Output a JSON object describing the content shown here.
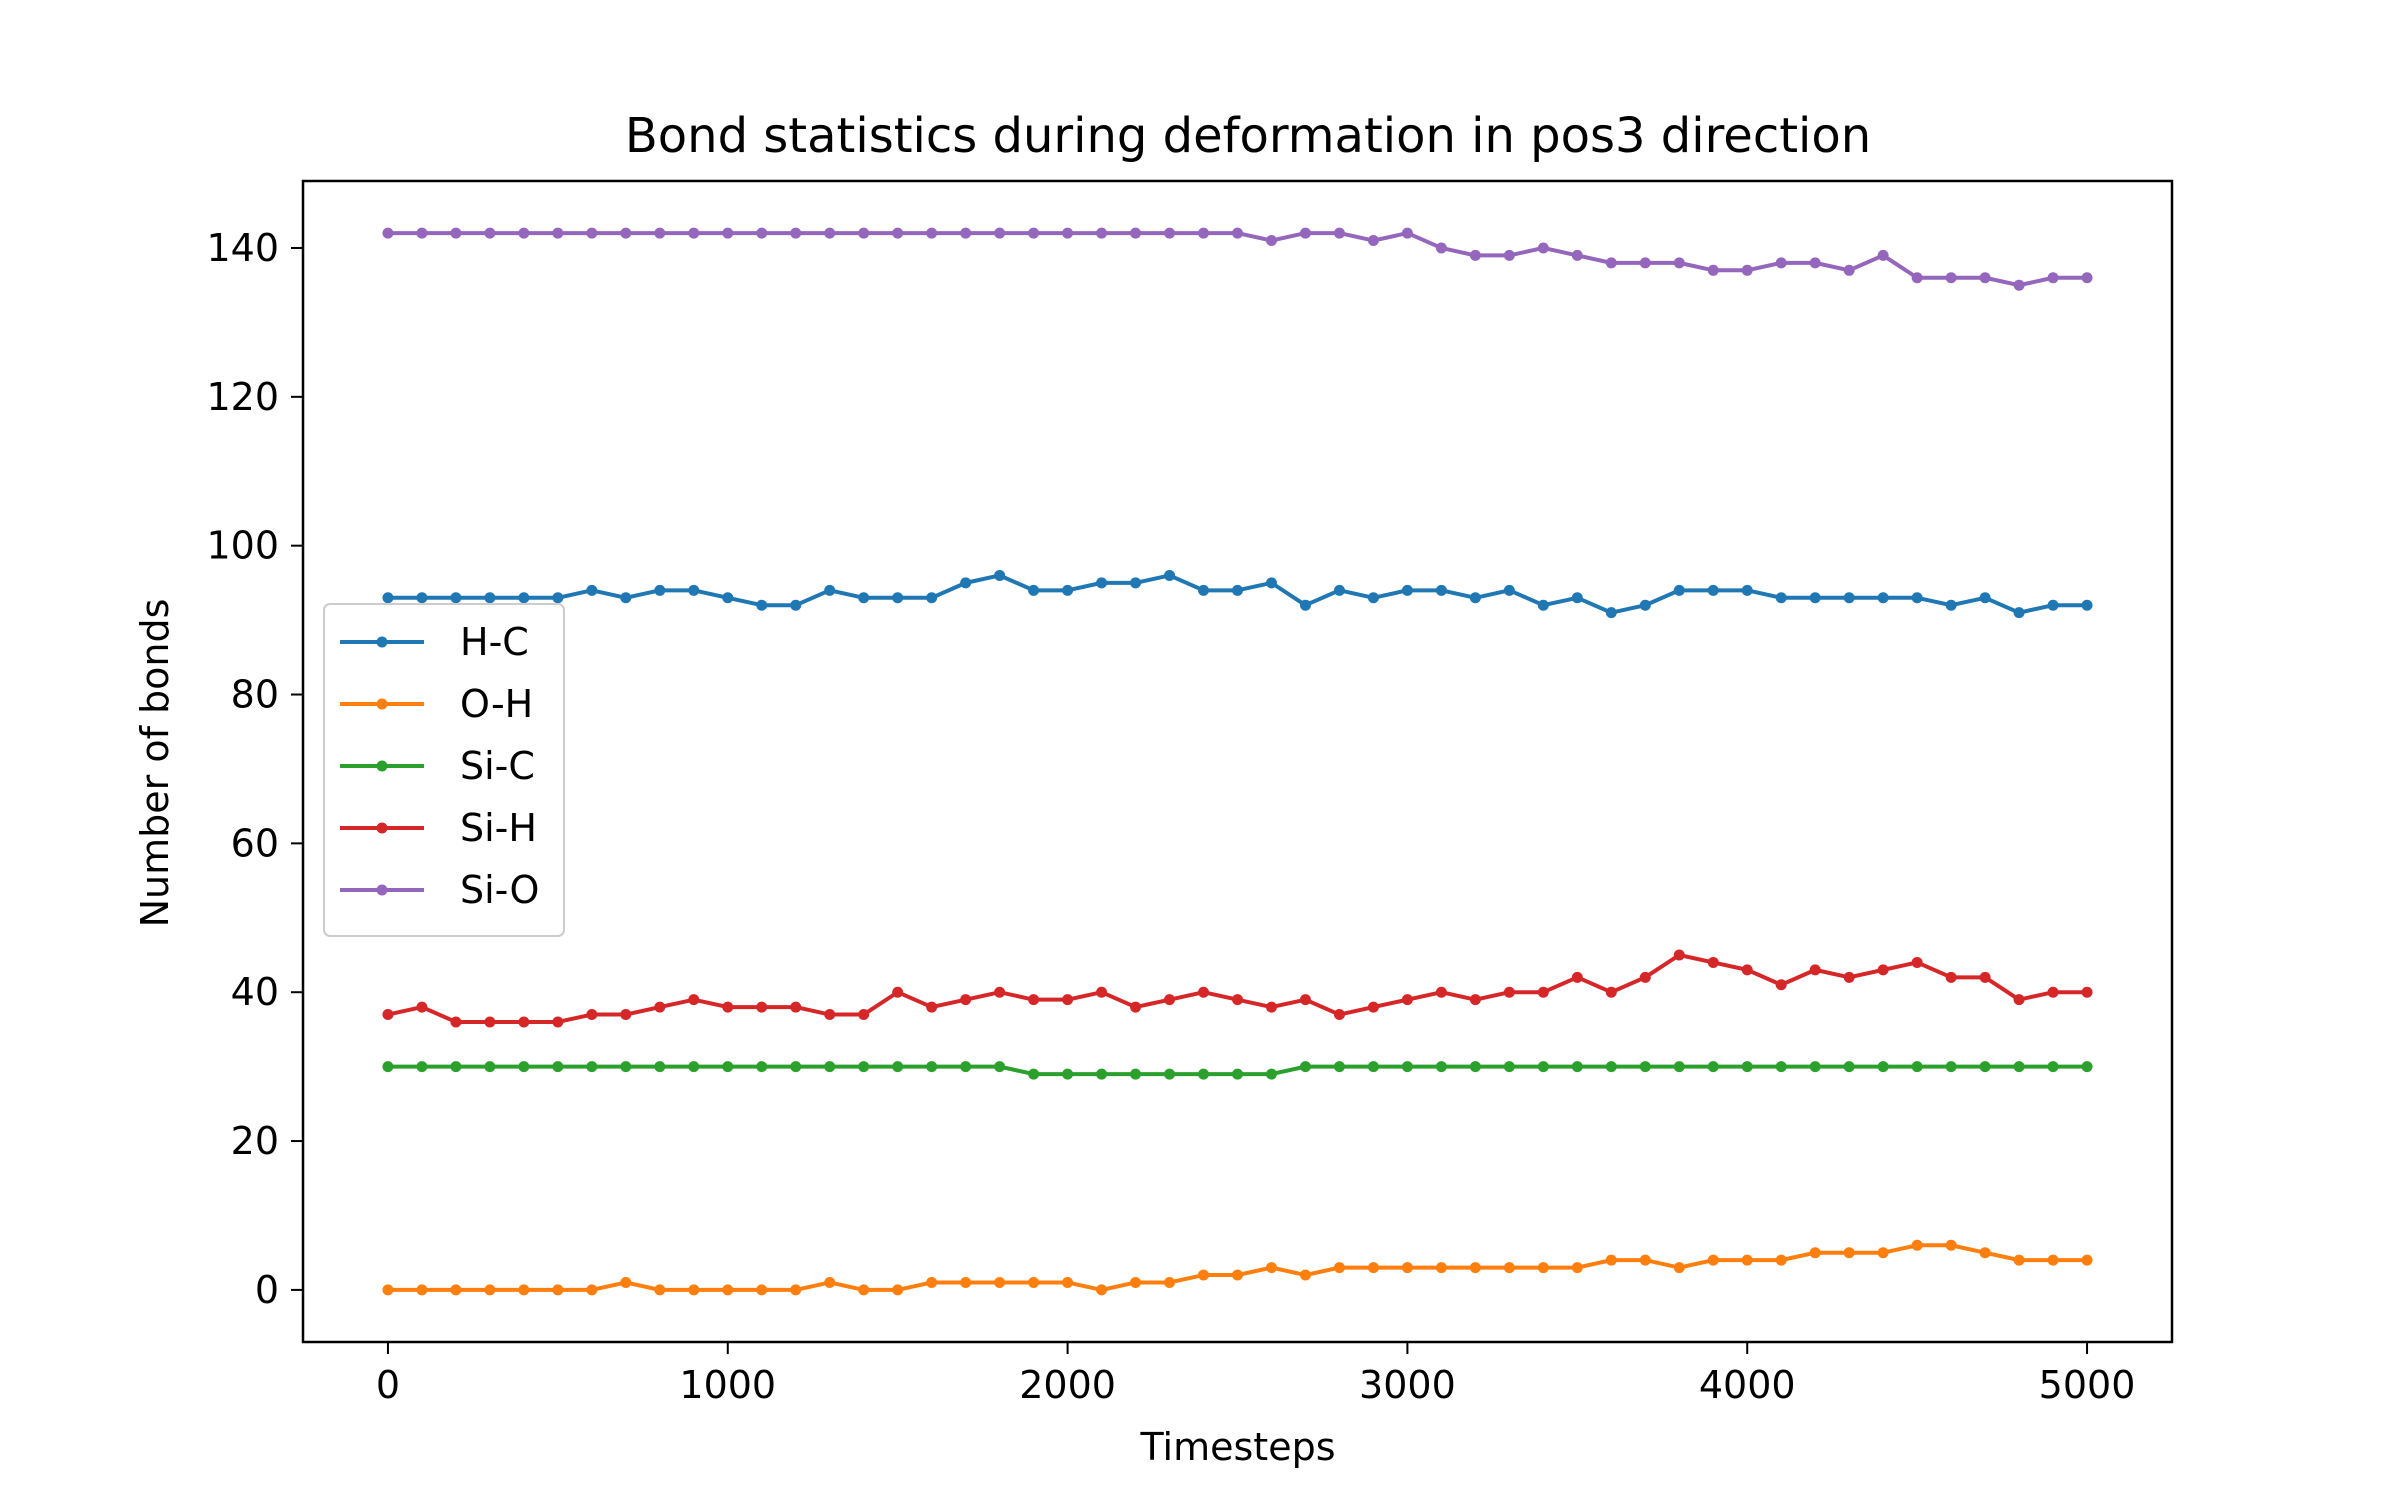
{
  "chart_data": {
    "type": "line",
    "title": "Bond statistics during deformation in pos3 direction",
    "xlabel": "Timesteps",
    "ylabel": "Number of bonds",
    "xlim": [
      -250,
      5250
    ],
    "ylim": [
      -7,
      149
    ],
    "xticks": [
      0,
      1000,
      2000,
      3000,
      4000,
      5000
    ],
    "yticks": [
      0,
      20,
      40,
      60,
      80,
      100,
      120,
      140
    ],
    "grid": false,
    "legend_position": "center-left",
    "x": [
      0,
      100,
      200,
      300,
      400,
      500,
      600,
      700,
      800,
      900,
      1000,
      1100,
      1200,
      1300,
      1400,
      1500,
      1600,
      1700,
      1800,
      1900,
      2000,
      2100,
      2200,
      2300,
      2400,
      2500,
      2600,
      2700,
      2800,
      2900,
      3000,
      3100,
      3200,
      3300,
      3400,
      3500,
      3600,
      3700,
      3800,
      3900,
      4000,
      4100,
      4200,
      4300,
      4400,
      4500,
      4600,
      4700,
      4800,
      4900,
      5000
    ],
    "series": [
      {
        "name": "H-C",
        "color": "#1f77b4",
        "values": [
          93,
          93,
          93,
          93,
          93,
          93,
          94,
          93,
          94,
          94,
          93,
          92,
          92,
          94,
          93,
          93,
          93,
          95,
          96,
          94,
          94,
          95,
          95,
          96,
          94,
          94,
          95,
          92,
          94,
          93,
          94,
          94,
          93,
          94,
          92,
          93,
          91,
          92,
          94,
          94,
          94,
          93,
          93,
          93,
          93,
          93,
          92,
          93,
          91,
          92,
          92
        ]
      },
      {
        "name": "O-H",
        "color": "#ff7f0e",
        "values": [
          0,
          0,
          0,
          0,
          0,
          0,
          0,
          1,
          0,
          0,
          0,
          0,
          0,
          1,
          0,
          0,
          1,
          1,
          1,
          1,
          1,
          0,
          1,
          1,
          2,
          2,
          3,
          2,
          3,
          3,
          3,
          3,
          3,
          3,
          3,
          3,
          4,
          4,
          3,
          4,
          4,
          4,
          5,
          5,
          5,
          6,
          6,
          5,
          4,
          4,
          4
        ]
      },
      {
        "name": "Si-C",
        "color": "#2ca02c",
        "values": [
          30,
          30,
          30,
          30,
          30,
          30,
          30,
          30,
          30,
          30,
          30,
          30,
          30,
          30,
          30,
          30,
          30,
          30,
          30,
          29,
          29,
          29,
          29,
          29,
          29,
          29,
          29,
          30,
          30,
          30,
          30,
          30,
          30,
          30,
          30,
          30,
          30,
          30,
          30,
          30,
          30,
          30,
          30,
          30,
          30,
          30,
          30,
          30,
          30,
          30,
          30
        ]
      },
      {
        "name": "Si-H",
        "color": "#d62728",
        "values": [
          37,
          38,
          36,
          36,
          36,
          36,
          37,
          37,
          38,
          39,
          38,
          38,
          38,
          37,
          37,
          40,
          38,
          39,
          40,
          39,
          39,
          40,
          38,
          39,
          40,
          39,
          38,
          39,
          37,
          38,
          39,
          40,
          39,
          40,
          40,
          42,
          40,
          42,
          45,
          44,
          43,
          41,
          43,
          42,
          43,
          44,
          42,
          42,
          39,
          40,
          40
        ]
      },
      {
        "name": "Si-O",
        "color": "#9467bd",
        "values": [
          142,
          142,
          142,
          142,
          142,
          142,
          142,
          142,
          142,
          142,
          142,
          142,
          142,
          142,
          142,
          142,
          142,
          142,
          142,
          142,
          142,
          142,
          142,
          142,
          142,
          142,
          141,
          142,
          142,
          141,
          142,
          140,
          139,
          139,
          140,
          139,
          138,
          138,
          138,
          137,
          137,
          138,
          138,
          137,
          139,
          136,
          136,
          136,
          135,
          136,
          136
        ]
      }
    ]
  }
}
